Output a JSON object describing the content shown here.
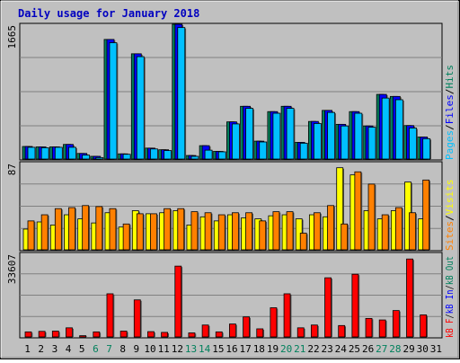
{
  "title": "Daily usage for January 2018",
  "days": [
    {
      "label": "1",
      "weekend": false
    },
    {
      "label": "2",
      "weekend": false
    },
    {
      "label": "3",
      "weekend": false
    },
    {
      "label": "4",
      "weekend": false
    },
    {
      "label": "5",
      "weekend": false
    },
    {
      "label": "6",
      "weekend": true
    },
    {
      "label": "7",
      "weekend": true
    },
    {
      "label": "8",
      "weekend": false
    },
    {
      "label": "9",
      "weekend": false
    },
    {
      "label": "10",
      "weekend": false
    },
    {
      "label": "11",
      "weekend": false
    },
    {
      "label": "12",
      "weekend": false
    },
    {
      "label": "13",
      "weekend": true
    },
    {
      "label": "14",
      "weekend": true
    },
    {
      "label": "15",
      "weekend": false
    },
    {
      "label": "16",
      "weekend": false
    },
    {
      "label": "17",
      "weekend": false
    },
    {
      "label": "18",
      "weekend": false
    },
    {
      "label": "19",
      "weekend": false
    },
    {
      "label": "20",
      "weekend": true
    },
    {
      "label": "21",
      "weekend": true
    },
    {
      "label": "22",
      "weekend": false
    },
    {
      "label": "23",
      "weekend": false
    },
    {
      "label": "24",
      "weekend": false
    },
    {
      "label": "25",
      "weekend": false
    },
    {
      "label": "26",
      "weekend": false
    },
    {
      "label": "27",
      "weekend": true
    },
    {
      "label": "28",
      "weekend": true
    },
    {
      "label": "29",
      "weekend": false
    },
    {
      "label": "30",
      "weekend": false
    },
    {
      "label": "31",
      "weekend": false
    }
  ],
  "colors": {
    "hits": "#00805c",
    "files": "#0000ff",
    "pages": "#00c0ff",
    "visits": "#ffff00",
    "sites": "#ff8000",
    "kbin": "#0000ff",
    "kbout": "#00805c",
    "kbf": "#ff0000",
    "weekend_label": "#00805c",
    "plot_bg": "#c0c0c0"
  },
  "chart_data": [
    {
      "type": "bar",
      "name": "hits-files-pages",
      "ymax_label": "1665",
      "ylim": [
        0,
        1665
      ],
      "legend": {
        "hits": "Hits",
        "files": "Files",
        "pages": "Pages",
        "sep": "/"
      },
      "series": [
        {
          "key": "hits",
          "values": [
            175,
            170,
            170,
            200,
            90,
            55,
            1480,
            85,
            1305,
            155,
            135,
            1665,
            65,
            185,
            115,
            475,
            665,
            240,
            600,
            665,
            225,
            480,
            615,
            445,
            600,
            425,
            810,
            785,
            430,
            290
          ]
        },
        {
          "key": "files",
          "values": [
            175,
            170,
            170,
            200,
            90,
            55,
            1480,
            85,
            1305,
            155,
            135,
            1665,
            65,
            185,
            115,
            475,
            665,
            240,
            600,
            665,
            225,
            480,
            615,
            445,
            600,
            425,
            810,
            785,
            430,
            290
          ]
        },
        {
          "key": "pages",
          "values": [
            165,
            160,
            165,
            165,
            70,
            40,
            1440,
            80,
            1270,
            145,
            125,
            1625,
            55,
            130,
            110,
            450,
            640,
            230,
            580,
            640,
            215,
            455,
            590,
            425,
            580,
            410,
            765,
            745,
            400,
            270
          ]
        }
      ]
    },
    {
      "type": "bar",
      "name": "visits-sites",
      "ymax_label": "87",
      "ylim": [
        0,
        87
      ],
      "legend": {
        "visits": "Visits",
        "sites": "Sites",
        "sep": "/"
      },
      "series": [
        {
          "key": "visits",
          "values": [
            22,
            29,
            26,
            36,
            32,
            28,
            38,
            24,
            40,
            37,
            38,
            40,
            26,
            34,
            30,
            36,
            33,
            32,
            35,
            36,
            32,
            36,
            34,
            82,
            75,
            40,
            32,
            40,
            68,
            32
          ]
        },
        {
          "key": "sites",
          "values": [
            30,
            36,
            42,
            43,
            45,
            44,
            42,
            27,
            37,
            37,
            42,
            42,
            39,
            38,
            36,
            38,
            38,
            30,
            39,
            39,
            18,
            38,
            45,
            27,
            78,
            66,
            36,
            43,
            38,
            70
          ]
        }
      ]
    },
    {
      "type": "bar",
      "name": "kbytes",
      "ymax_label": "33607",
      "ylim": [
        0,
        33607
      ],
      "legend": {
        "kbf": "kB F",
        "kbin": "kB In",
        "kbout": "kB Out",
        "sep": "/"
      },
      "series": [
        {
          "key": "kbf",
          "values": [
            2700,
            2900,
            3000,
            4300,
            1200,
            2700,
            17700,
            3000,
            15300,
            2800,
            2500,
            28600,
            2300,
            5400,
            2700,
            5800,
            8600,
            3900,
            12200,
            17700,
            4300,
            5400,
            24000,
            5200,
            25400,
            8000,
            7400,
            11100,
            31400,
            9400
          ]
        }
      ]
    }
  ]
}
